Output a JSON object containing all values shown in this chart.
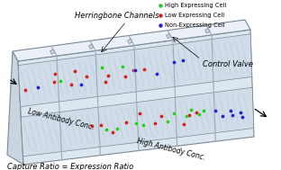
{
  "high_cell_color": "#22cc22",
  "low_cell_color": "#cc2222",
  "non_cell_color": "#2222cc",
  "legend_labels": [
    "High Expressing Cell",
    "Low Expressing Cell",
    "Non-Expressing Cell"
  ],
  "label_herringbone": "Herringbone Channels",
  "label_control": "Control Valve",
  "label_low_ab": "Low Antibody Conc.",
  "label_high_ab": "High Antibody Conc.",
  "label_bottom": "Capture Ratio = Expression Ratio",
  "chip_face_color": "#dce6ee",
  "chip_top_color": "#eaf0f6",
  "chip_left_color": "#c8d4de",
  "chip_edge_color": "#7a8a98",
  "divider_color": "#9aaaba",
  "channel_bg_color": "#d0dce8",
  "channel_stripe_color": "#c4d0dc",
  "tab_face_color": "#c8d8e4",
  "tab_edge_color": "#7a8898"
}
